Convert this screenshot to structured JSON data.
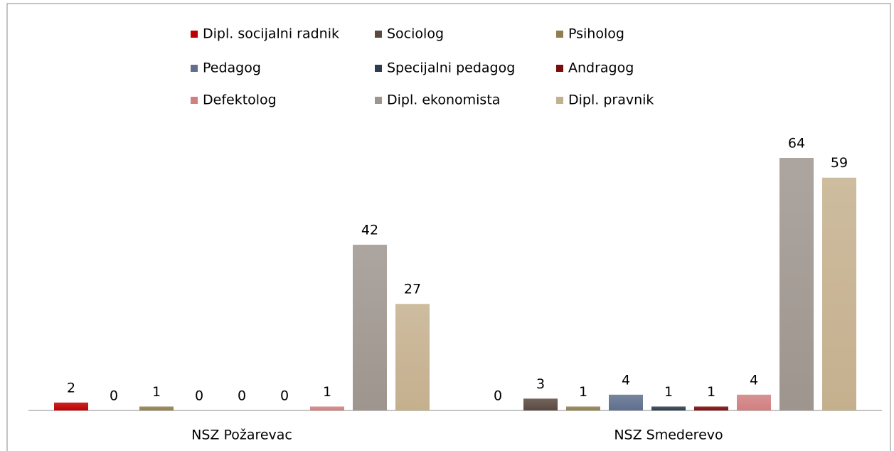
{
  "chart_data": {
    "type": "bar",
    "categories": [
      "NSZ Požarevac",
      "NSZ Smederevo"
    ],
    "series": [
      {
        "name": "Dipl. socijalni radnik",
        "color": "#c00000",
        "values": [
          2,
          0
        ]
      },
      {
        "name": "Sociolog",
        "color": "#5a4940",
        "values": [
          0,
          3
        ]
      },
      {
        "name": "Psiholog",
        "color": "#8f7f50",
        "values": [
          1,
          1
        ]
      },
      {
        "name": "Pedagog",
        "color": "#5f6f8d",
        "values": [
          0,
          4
        ]
      },
      {
        "name": "Specijalni pedagog",
        "color": "#2d3d4d",
        "values": [
          0,
          1
        ]
      },
      {
        "name": "Andragog",
        "color": "#7a0c0c",
        "values": [
          0,
          1
        ]
      },
      {
        "name": "Defektolog",
        "color": "#d17f80",
        "values": [
          1,
          4
        ]
      },
      {
        "name": "Dipl. ekonomista",
        "color": "#9e958e",
        "values": [
          42,
          64
        ]
      },
      {
        "name": "Dipl. pravnik",
        "color": "#c5b08e",
        "values": [
          27,
          59
        ]
      }
    ],
    "legend": "top"
  }
}
